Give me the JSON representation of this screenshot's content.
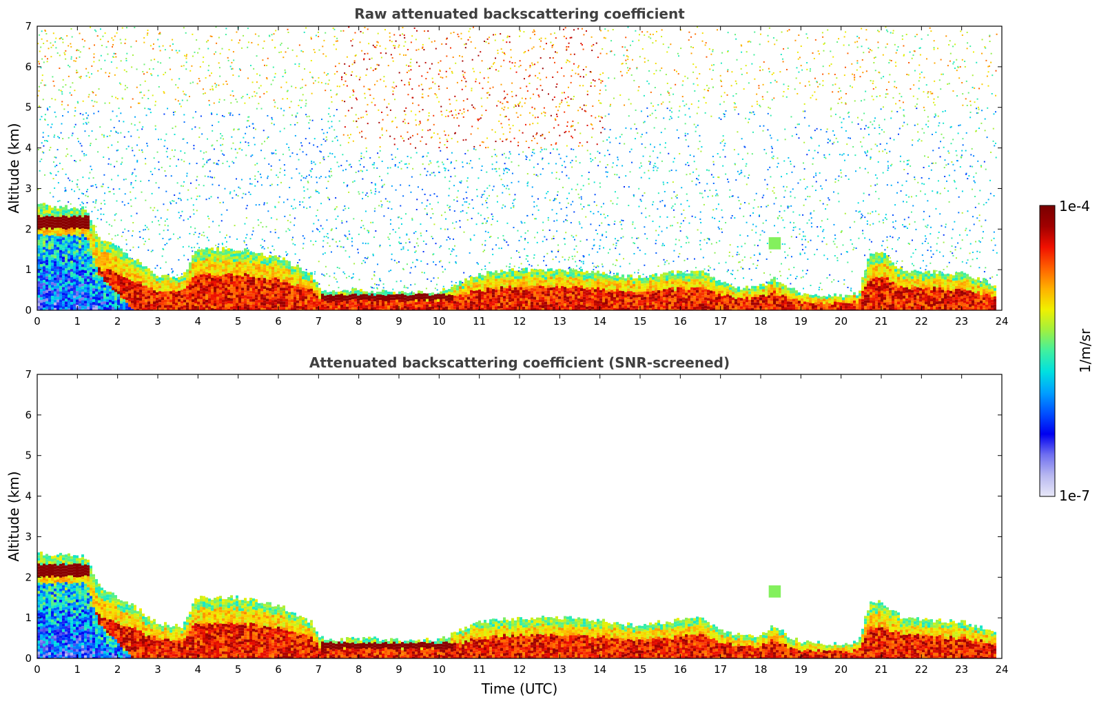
{
  "chart_data": [
    {
      "type": "heatmap",
      "title": "Raw attenuated backscattering coefficient",
      "xlabel": "",
      "ylabel": "Altitude (km)",
      "xlim": [
        0,
        24
      ],
      "ylim": [
        0,
        7
      ],
      "xticks": [
        "0",
        "1",
        "2",
        "3",
        "4",
        "5",
        "6",
        "7",
        "8",
        "9",
        "10",
        "11",
        "12",
        "13",
        "14",
        "15",
        "16",
        "17",
        "18",
        "19",
        "20",
        "21",
        "22",
        "23",
        "24"
      ],
      "yticks": [
        "0",
        "1",
        "2",
        "3",
        "4",
        "5",
        "6",
        "7"
      ],
      "layer_top_km": [
        [
          0,
          2.6
        ],
        [
          1.2,
          2.5
        ],
        [
          1.5,
          1.8
        ],
        [
          2.0,
          1.5
        ],
        [
          2.5,
          1.2
        ],
        [
          3.0,
          0.85
        ],
        [
          3.6,
          0.8
        ],
        [
          3.9,
          1.5
        ],
        [
          5.0,
          1.5
        ],
        [
          6.0,
          1.3
        ],
        [
          6.8,
          0.9
        ],
        [
          7.0,
          0.5
        ],
        [
          7.5,
          0.45
        ],
        [
          8.0,
          0.5
        ],
        [
          9.0,
          0.45
        ],
        [
          10.0,
          0.45
        ],
        [
          10.4,
          0.65
        ],
        [
          11.0,
          0.9
        ],
        [
          12.0,
          1.0
        ],
        [
          13.0,
          1.0
        ],
        [
          14.0,
          0.95
        ],
        [
          14.5,
          0.85
        ],
        [
          15.0,
          0.8
        ],
        [
          15.5,
          0.9
        ],
        [
          16.0,
          0.95
        ],
        [
          16.5,
          1.0
        ],
        [
          17.0,
          0.7
        ],
        [
          17.5,
          0.55
        ],
        [
          18.0,
          0.6
        ],
        [
          18.3,
          0.8
        ],
        [
          18.6,
          0.6
        ],
        [
          19.0,
          0.4
        ],
        [
          20.0,
          0.35
        ],
        [
          20.4,
          0.4
        ],
        [
          20.7,
          1.45
        ],
        [
          21.0,
          1.4
        ],
        [
          21.5,
          1.0
        ],
        [
          22.0,
          0.95
        ],
        [
          23.0,
          0.9
        ],
        [
          23.5,
          0.75
        ],
        [
          23.8,
          0.6
        ]
      ],
      "aerosol_layer_bottom_km": [
        [
          0,
          2.1
        ],
        [
          1.2,
          2.1
        ],
        [
          1.5,
          1.0
        ],
        [
          2.4,
          0.0
        ]
      ],
      "noise": true
    },
    {
      "type": "heatmap",
      "title": "Attenuated backscattering coefficient (SNR-screened)",
      "xlabel": "Time (UTC)",
      "ylabel": "Altitude (km)",
      "xlim": [
        0,
        24
      ],
      "ylim": [
        0,
        7
      ],
      "xticks": [
        "0",
        "1",
        "2",
        "3",
        "4",
        "5",
        "6",
        "7",
        "8",
        "9",
        "10",
        "11",
        "12",
        "13",
        "14",
        "15",
        "16",
        "17",
        "18",
        "19",
        "20",
        "21",
        "22",
        "23",
        "24"
      ],
      "yticks": [
        "0",
        "1",
        "2",
        "3",
        "4",
        "5",
        "6",
        "7"
      ],
      "layer_top_km": [
        [
          0,
          2.6
        ],
        [
          1.2,
          2.5
        ],
        [
          1.5,
          1.8
        ],
        [
          2.0,
          1.5
        ],
        [
          2.5,
          1.2
        ],
        [
          3.0,
          0.85
        ],
        [
          3.6,
          0.8
        ],
        [
          3.9,
          1.5
        ],
        [
          5.0,
          1.5
        ],
        [
          6.0,
          1.3
        ],
        [
          6.8,
          0.9
        ],
        [
          7.0,
          0.5
        ],
        [
          7.5,
          0.45
        ],
        [
          8.0,
          0.5
        ],
        [
          9.0,
          0.45
        ],
        [
          10.0,
          0.45
        ],
        [
          10.4,
          0.65
        ],
        [
          11.0,
          0.9
        ],
        [
          12.0,
          1.0
        ],
        [
          13.0,
          1.0
        ],
        [
          14.0,
          0.95
        ],
        [
          14.5,
          0.85
        ],
        [
          15.0,
          0.8
        ],
        [
          15.5,
          0.9
        ],
        [
          16.0,
          0.95
        ],
        [
          16.5,
          1.0
        ],
        [
          17.0,
          0.7
        ],
        [
          17.5,
          0.55
        ],
        [
          18.0,
          0.6
        ],
        [
          18.3,
          0.8
        ],
        [
          18.6,
          0.6
        ],
        [
          19.0,
          0.4
        ],
        [
          20.0,
          0.35
        ],
        [
          20.4,
          0.4
        ],
        [
          20.7,
          1.45
        ],
        [
          21.0,
          1.4
        ],
        [
          21.5,
          1.0
        ],
        [
          22.0,
          0.95
        ],
        [
          23.0,
          0.9
        ],
        [
          23.5,
          0.75
        ],
        [
          23.8,
          0.6
        ]
      ],
      "aerosol_layer_bottom_km": [
        [
          0,
          2.1
        ],
        [
          1.2,
          2.1
        ],
        [
          1.5,
          1.0
        ],
        [
          2.4,
          0.0
        ]
      ],
      "noise": false
    }
  ],
  "colorbar": {
    "label": "1/m/sr",
    "max_label": "1e-4",
    "min_label": "1e-7",
    "range": [
      1e-07,
      0.0001
    ],
    "scale": "log",
    "colors": [
      "#e8e8f8",
      "#b8b8f0",
      "#7070f0",
      "#0000f0",
      "#0050ff",
      "#00a0ff",
      "#00e0e0",
      "#40f0a0",
      "#a0f040",
      "#f0f000",
      "#ffb000",
      "#ff6000",
      "#f01000",
      "#a00000",
      "#780000"
    ]
  }
}
